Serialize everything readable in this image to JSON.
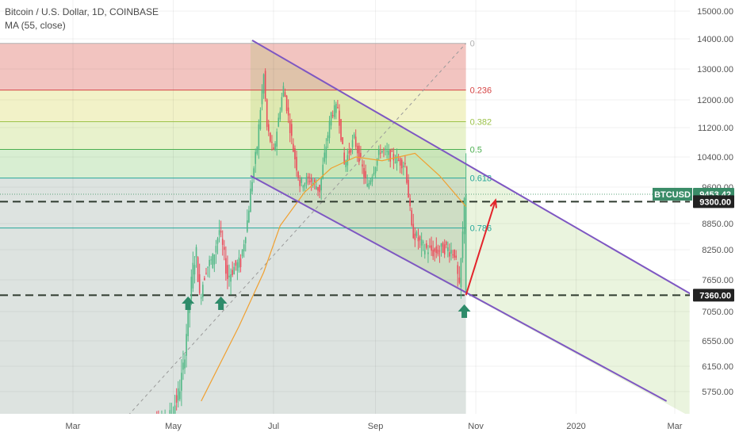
{
  "chart_title": "Bitcoin / U.S. Dollar, 1D, COINBASE",
  "indicator_label": "MA (55, close)",
  "symbol": "BTCUSD",
  "colors": {
    "up": "#53b987",
    "down": "#eb4d5c",
    "channel": "#7e57c2",
    "ma": "#f0a030",
    "arrow": "#e3242b",
    "marker": "#2e8b6a",
    "tag": "#3a8c68",
    "price_tag": "#222222"
  },
  "chart_data": {
    "type": "candlestick",
    "title": "Bitcoin / U.S. Dollar, 1D, COINBASE",
    "xlabel": "",
    "ylabel": "",
    "x_range": [
      "2019-01-27",
      "2020-03-17"
    ],
    "y_ticks": [
      15000,
      14000,
      13000,
      12000,
      11200,
      10400,
      9600,
      8850,
      8250,
      7650,
      7050,
      6550,
      6150,
      5750
    ],
    "y_tick_labels": [
      "15000.00",
      "14000.00",
      "13000.00",
      "12000.00",
      "11200.00",
      "10400.00",
      "9600.00",
      "8850.00",
      "8250.00",
      "7650.00",
      "7050.00",
      "6550.00",
      "6150.00",
      "5750.00"
    ],
    "x_ticks": [
      {
        "label": "Mar",
        "date": "2019-03-01"
      },
      {
        "label": "May",
        "date": "2019-05-01"
      },
      {
        "label": "Jul",
        "date": "2019-07-01"
      },
      {
        "label": "Sep",
        "date": "2019-09-01"
      },
      {
        "label": "Nov",
        "date": "2019-11-01"
      },
      {
        "label": "2020",
        "date": "2020-01-01"
      },
      {
        "label": "Mar",
        "date": "2020-03-01"
      }
    ],
    "price_path": [
      [
        "2019-04-18",
        5300
      ],
      [
        "2019-04-28",
        5200
      ],
      [
        "2019-05-05",
        5700
      ],
      [
        "2019-05-08",
        6100
      ],
      [
        "2019-05-11",
        7000
      ],
      [
        "2019-05-14",
        7900
      ],
      [
        "2019-05-16",
        8200
      ],
      [
        "2019-05-18",
        7300
      ],
      [
        "2019-05-22",
        7900
      ],
      [
        "2019-05-26",
        8050
      ],
      [
        "2019-05-30",
        8700
      ],
      [
        "2019-06-04",
        7700
      ],
      [
        "2019-06-08",
        7900
      ],
      [
        "2019-06-12",
        8000
      ],
      [
        "2019-06-16",
        8900
      ],
      [
        "2019-06-22",
        10700
      ],
      [
        "2019-06-26",
        12800
      ],
      [
        "2019-06-28",
        11200
      ],
      [
        "2019-07-02",
        10500
      ],
      [
        "2019-07-08",
        12400
      ],
      [
        "2019-07-14",
        10600
      ],
      [
        "2019-07-18",
        9700
      ],
      [
        "2019-07-24",
        9800
      ],
      [
        "2019-07-30",
        9550
      ],
      [
        "2019-08-06",
        11600
      ],
      [
        "2019-08-10",
        11800
      ],
      [
        "2019-08-14",
        10200
      ],
      [
        "2019-08-20",
        10900
      ],
      [
        "2019-08-28",
        9600
      ],
      [
        "2019-09-05",
        10600
      ],
      [
        "2019-09-12",
        10400
      ],
      [
        "2019-09-20",
        10200
      ],
      [
        "2019-09-24",
        8700
      ],
      [
        "2019-10-01",
        8300
      ],
      [
        "2019-10-08",
        8200
      ],
      [
        "2019-10-14",
        8300
      ],
      [
        "2019-10-20",
        8200
      ],
      [
        "2019-10-23",
        7450
      ],
      [
        "2019-10-25",
        8600
      ],
      [
        "2019-10-26",
        9453.42
      ]
    ],
    "series": [
      {
        "name": "MA (55, close)",
        "values": [
          [
            "2019-05-18",
            5600
          ],
          [
            "2019-06-10",
            6800
          ],
          [
            "2019-06-25",
            7800
          ],
          [
            "2019-07-05",
            8800
          ],
          [
            "2019-07-20",
            9500
          ],
          [
            "2019-08-05",
            10100
          ],
          [
            "2019-08-20",
            10400
          ],
          [
            "2019-09-05",
            10300
          ],
          [
            "2019-09-25",
            10500
          ],
          [
            "2019-10-10",
            9900
          ],
          [
            "2019-10-26",
            9200
          ]
        ]
      }
    ],
    "fibonacci": {
      "high": 13850,
      "low": 7360,
      "levels": [
        {
          "ratio": 0,
          "label": "0",
          "color": "#b0b0b0",
          "fill": "#f2c4c0"
        },
        {
          "ratio": 0.236,
          "label": "0.236",
          "color": "#d64545",
          "fill": "#f2f2c8"
        },
        {
          "ratio": 0.382,
          "label": "0.382",
          "color": "#9cc24a",
          "fill": "#e8f2cc"
        },
        {
          "ratio": 0.5,
          "label": "0.5",
          "color": "#4caf50",
          "fill": "#d8eed2"
        },
        {
          "ratio": 0.618,
          "label": "0.618",
          "color": "#26a69a",
          "fill": "#dde3e0"
        },
        {
          "ratio": 0.786,
          "label": "0.786",
          "color": "#26a69a",
          "fill": null
        }
      ]
    },
    "channel": {
      "upper": [
        [
          "2019-06-18",
          13950
        ],
        [
          "2020-03-12",
          7360
        ]
      ],
      "lower": [
        [
          "2019-06-17",
          9900
        ],
        [
          "2020-02-25",
          5600
        ]
      ]
    },
    "horizontal_levels": [
      {
        "label": "9300.00",
        "value": 9300
      },
      {
        "label": "7360.00",
        "value": 7360
      }
    ],
    "last_price": {
      "label": "9453.42",
      "value": 9453.42
    },
    "arrow": {
      "from": [
        "2019-10-26",
        7360
      ],
      "to": [
        "2019-11-13",
        9330
      ]
    },
    "up_markers": [
      [
        "2019-05-10",
        7200
      ],
      [
        "2019-05-30",
        7200
      ],
      [
        "2019-10-25",
        7050
      ]
    ],
    "grid": true
  }
}
